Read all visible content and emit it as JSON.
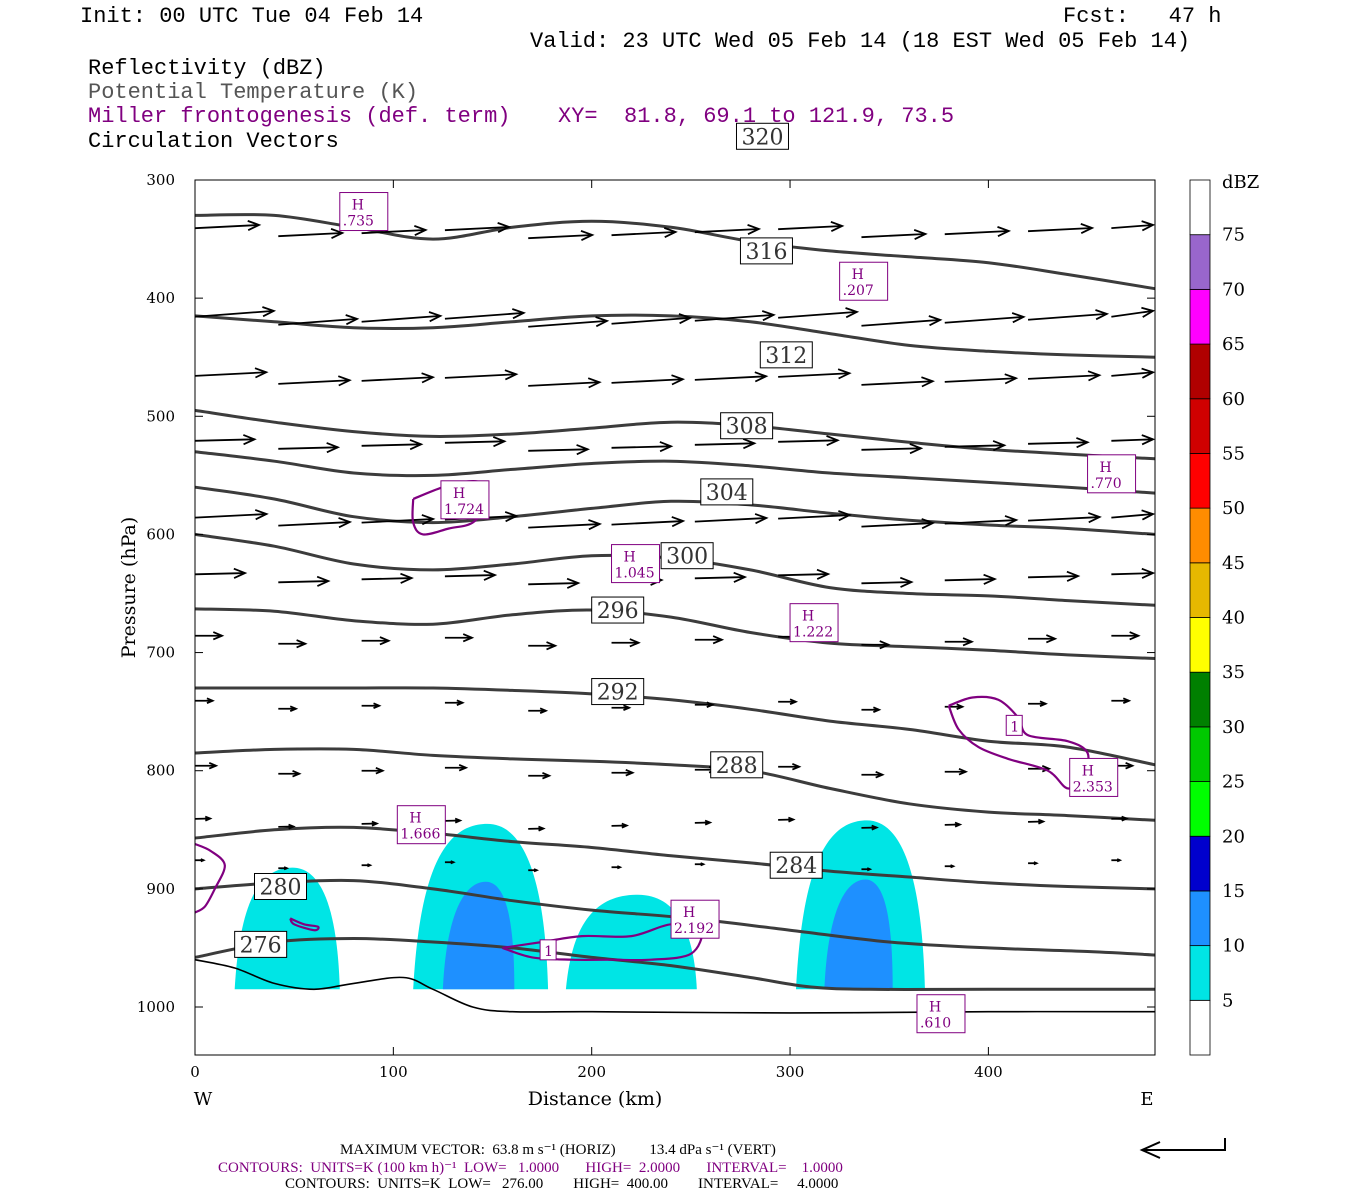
{
  "header": {
    "init": "Init: 00 UTC Tue 04 Feb 14",
    "fcst": "Fcst:   47 h",
    "valid": "Valid: 23 UTC Wed 05 Feb 14 (18 EST Wed 05 Feb 14)"
  },
  "fields": {
    "reflectivity": "Reflectivity (dBZ)",
    "theta": "Potential Temperature (K)",
    "frontogenesis": "Miller frontogenesis (def. term)",
    "xy": "XY=  81.8, 69.1 to 121.9, 73.5",
    "vectors": "Circulation Vectors"
  },
  "footer": {
    "max_vector": "MAXIMUM VECTOR:  63.8 m s⁻¹ (HORIZ)         13.4 dPa s⁻¹ (VERT)",
    "contours_fronto": "CONTOURS:  UNITS=K (100 km h)⁻¹  LOW=   1.0000       HIGH=  2.0000       INTERVAL=    1.0000",
    "contours_theta": "CONTOURS:  UNITS=K  LOW=   276.00        HIGH=  400.00        INTERVAL=     4.0000"
  },
  "chart_data": {
    "type": "contour",
    "xlabel": "Distance (km)",
    "ylabel": "Pressure (hPa)",
    "xlim": [
      0,
      484
    ],
    "ylim": [
      1040,
      300
    ],
    "x_ticks": [
      0,
      100,
      200,
      300,
      400
    ],
    "y_ticks": [
      300,
      400,
      500,
      600,
      700,
      800,
      900,
      1000
    ],
    "west_label": "W",
    "east_label": "E",
    "theta_contours": [
      {
        "value": 276,
        "label": "276",
        "label_at": [
          20,
          947
        ],
        "points": [
          [
            0,
            958
          ],
          [
            40,
            945
          ],
          [
            80,
            942
          ],
          [
            120,
            945
          ],
          [
            160,
            950
          ],
          [
            200,
            958
          ],
          [
            240,
            965
          ],
          [
            280,
            975
          ],
          [
            310,
            983
          ],
          [
            340,
            985
          ],
          [
            400,
            985
          ],
          [
            484,
            985
          ]
        ]
      },
      {
        "value": 280,
        "label": "280",
        "label_at": [
          30,
          898
        ],
        "points": [
          [
            0,
            900
          ],
          [
            40,
            895
          ],
          [
            80,
            893
          ],
          [
            120,
            900
          ],
          [
            160,
            910
          ],
          [
            200,
            918
          ],
          [
            250,
            925
          ],
          [
            300,
            935
          ],
          [
            350,
            945
          ],
          [
            400,
            950
          ],
          [
            450,
            953
          ],
          [
            484,
            956
          ]
        ]
      },
      {
        "value": 284,
        "label": "284",
        "label_at": [
          290,
          880
        ],
        "points": [
          [
            0,
            857
          ],
          [
            40,
            850
          ],
          [
            80,
            848
          ],
          [
            120,
            853
          ],
          [
            160,
            860
          ],
          [
            200,
            865
          ],
          [
            240,
            872
          ],
          [
            280,
            878
          ],
          [
            320,
            885
          ],
          [
            360,
            890
          ],
          [
            400,
            895
          ],
          [
            440,
            898
          ],
          [
            484,
            900
          ]
        ]
      },
      {
        "value": 288,
        "label": "288",
        "label_at": [
          260,
          795
        ],
        "points": [
          [
            0,
            785
          ],
          [
            40,
            782
          ],
          [
            80,
            782
          ],
          [
            120,
            787
          ],
          [
            160,
            790
          ],
          [
            200,
            792
          ],
          [
            240,
            795
          ],
          [
            280,
            800
          ],
          [
            320,
            815
          ],
          [
            360,
            828
          ],
          [
            400,
            835
          ],
          [
            440,
            838
          ],
          [
            484,
            842
          ]
        ]
      },
      {
        "value": 292,
        "label": "292",
        "label_at": [
          200,
          733
        ],
        "points": [
          [
            0,
            730
          ],
          [
            40,
            730
          ],
          [
            80,
            730
          ],
          [
            120,
            730
          ],
          [
            160,
            732
          ],
          [
            200,
            735
          ],
          [
            240,
            740
          ],
          [
            280,
            748
          ],
          [
            320,
            758
          ],
          [
            360,
            765
          ],
          [
            400,
            775
          ],
          [
            440,
            780
          ],
          [
            484,
            795
          ]
        ]
      },
      {
        "value": 296,
        "label": "296",
        "label_at": [
          200,
          664
        ],
        "points": [
          [
            0,
            663
          ],
          [
            40,
            665
          ],
          [
            80,
            673
          ],
          [
            120,
            676
          ],
          [
            160,
            668
          ],
          [
            200,
            664
          ],
          [
            240,
            670
          ],
          [
            280,
            683
          ],
          [
            320,
            692
          ],
          [
            360,
            695
          ],
          [
            400,
            698
          ],
          [
            440,
            702
          ],
          [
            484,
            705
          ]
        ]
      },
      {
        "value": 300,
        "label": "300",
        "label_at": [
          235,
          618
        ],
        "points": [
          [
            0,
            600
          ],
          [
            40,
            610
          ],
          [
            80,
            625
          ],
          [
            120,
            630
          ],
          [
            160,
            625
          ],
          [
            200,
            618
          ],
          [
            240,
            620
          ],
          [
            280,
            630
          ],
          [
            320,
            645
          ],
          [
            360,
            650
          ],
          [
            400,
            652
          ],
          [
            440,
            656
          ],
          [
            484,
            660
          ]
        ]
      },
      {
        "value": 304,
        "label": "304",
        "label_at": [
          255,
          564
        ],
        "points": [
          [
            0,
            560
          ],
          [
            40,
            570
          ],
          [
            80,
            585
          ],
          [
            120,
            590
          ],
          [
            160,
            585
          ],
          [
            200,
            578
          ],
          [
            240,
            572
          ],
          [
            280,
            575
          ],
          [
            320,
            582
          ],
          [
            360,
            588
          ],
          [
            400,
            592
          ],
          [
            440,
            595
          ],
          [
            484,
            600
          ]
        ]
      },
      {
        "value": 308,
        "label": "308",
        "label_at": [
          265,
          508
        ],
        "points": [
          [
            0,
            530
          ],
          [
            40,
            538
          ],
          [
            80,
            548
          ],
          [
            120,
            550
          ],
          [
            160,
            545
          ],
          [
            200,
            540
          ],
          [
            240,
            538
          ],
          [
            280,
            542
          ],
          [
            320,
            548
          ],
          [
            360,
            552
          ],
          [
            400,
            556
          ],
          [
            440,
            560
          ],
          [
            484,
            565
          ]
        ]
      },
      {
        "value": 312,
        "label": "312",
        "label_at": [
          285,
          448
        ],
        "points": [
          [
            0,
            495
          ],
          [
            40,
            505
          ],
          [
            80,
            513
          ],
          [
            120,
            517
          ],
          [
            160,
            515
          ],
          [
            200,
            510
          ],
          [
            240,
            505
          ],
          [
            280,
            508
          ],
          [
            320,
            515
          ],
          [
            360,
            522
          ],
          [
            400,
            528
          ],
          [
            440,
            532
          ],
          [
            484,
            536
          ]
        ]
      },
      {
        "value": 316,
        "label": "316",
        "label_at": [
          275,
          360
        ],
        "points": [
          [
            0,
            415
          ],
          [
            40,
            420
          ],
          [
            80,
            425
          ],
          [
            120,
            425
          ],
          [
            160,
            420
          ],
          [
            200,
            415
          ],
          [
            240,
            415
          ],
          [
            280,
            420
          ],
          [
            320,
            430
          ],
          [
            360,
            440
          ],
          [
            400,
            445
          ],
          [
            440,
            448
          ],
          [
            484,
            450
          ]
        ]
      },
      {
        "value": 320,
        "label": "320",
        "label_at": [
          273,
          263
        ],
        "points": [
          [
            0,
            330
          ],
          [
            40,
            330
          ],
          [
            80,
            340
          ],
          [
            120,
            350
          ],
          [
            160,
            340
          ],
          [
            200,
            335
          ],
          [
            240,
            340
          ],
          [
            280,
            352
          ],
          [
            320,
            360
          ],
          [
            360,
            365
          ],
          [
            400,
            370
          ],
          [
            440,
            380
          ],
          [
            484,
            392
          ]
        ]
      }
    ],
    "frontogenesis_extrema": [
      {
        "label": "H",
        "value": ".735",
        "at": [
          73,
          336
        ]
      },
      {
        "label": "H",
        "value": ".207",
        "at": [
          325,
          395
        ]
      },
      {
        "label": "H",
        "value": ".770",
        "at": [
          450,
          558
        ]
      },
      {
        "label": "H",
        "value": "1.724",
        "at": [
          124,
          580
        ]
      },
      {
        "label": "H",
        "value": "1.045",
        "at": [
          210,
          634
        ]
      },
      {
        "label": "H",
        "value": "1.222",
        "at": [
          300,
          684
        ]
      },
      {
        "label": "H",
        "value": "2.353",
        "at": [
          441,
          815
        ]
      },
      {
        "label": "H",
        "value": "1.666",
        "at": [
          102,
          855
        ]
      },
      {
        "label": "H",
        "value": "2.192",
        "at": [
          240,
          935
        ]
      },
      {
        "label": "H",
        "value": ".610",
        "at": [
          364,
          1015
        ]
      }
    ],
    "frontogenesis_labels": [
      {
        "label": "1",
        "at": [
          410,
          765
        ]
      },
      {
        "label": "1",
        "at": [
          175,
          955
        ]
      }
    ],
    "reflectivity_cells_dbz": [
      {
        "x_range": [
          20,
          73
        ],
        "top_p": 882,
        "max_dbz": 5
      },
      {
        "x_range": [
          110,
          178
        ],
        "top_p": 845,
        "max_dbz": 10
      },
      {
        "x_range": [
          187,
          253
        ],
        "top_p": 905,
        "max_dbz": 5
      },
      {
        "x_range": [
          303,
          368
        ],
        "top_p": 842,
        "max_dbz": 10
      }
    ],
    "colorbar": {
      "unit": "dBZ",
      "levels": [
        5,
        10,
        15,
        20,
        25,
        30,
        35,
        40,
        45,
        50,
        55,
        60,
        65,
        70,
        75
      ],
      "colors": [
        "#00e5e5",
        "#1e90ff",
        "#0000cd",
        "#00ff00",
        "#00c800",
        "#008000",
        "#ffff00",
        "#e6b800",
        "#ff8c00",
        "#ff0000",
        "#d00000",
        "#b00000",
        "#ff00ff",
        "#9966cc"
      ]
    }
  }
}
